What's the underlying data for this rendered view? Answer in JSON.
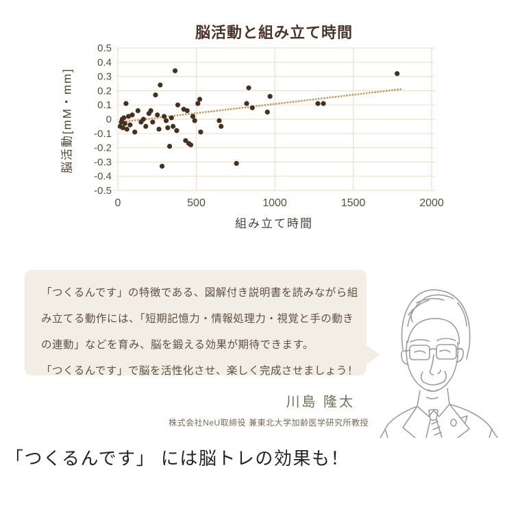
{
  "chart_data": {
    "type": "scatter",
    "title": "脳活動と組み立て時間",
    "xlabel": "組み立て時間",
    "ylabel": "脳活動[mM・mm]",
    "xlim": [
      0,
      2000
    ],
    "ylim": [
      -0.5,
      0.5
    ],
    "x_ticks": [
      "0",
      "500",
      "1000",
      "1500",
      "2000"
    ],
    "y_ticks": [
      "0.5",
      "0.4",
      "0.3",
      "0.2",
      "0.1",
      "0",
      "-0.1",
      "-0.2",
      "-0.3",
      "-0.4",
      "-0.5"
    ],
    "grid": true,
    "legend_position": "none",
    "colors": {
      "point": "#44311f",
      "trend": "#c49a58",
      "grid": "#eddfcb",
      "tick_text": "#5a4b3d",
      "title_text": "#4b3429",
      "axis_label_text": "#4e4236"
    },
    "series": [
      {
        "name": "brain-activity-points",
        "type": "scatter",
        "points": [
          [
            15,
            -0.05
          ],
          [
            22,
            -0.02
          ],
          [
            28,
            0.0
          ],
          [
            32,
            -0.06
          ],
          [
            38,
            0.01
          ],
          [
            45,
            -0.03
          ],
          [
            52,
            0.11
          ],
          [
            58,
            -0.07
          ],
          [
            68,
            0.02
          ],
          [
            78,
            -0.04
          ],
          [
            92,
            0.03
          ],
          [
            108,
            -0.09
          ],
          [
            128,
            0.06
          ],
          [
            148,
            -0.02
          ],
          [
            163,
            0.0
          ],
          [
            178,
            -0.05
          ],
          [
            198,
            0.04
          ],
          [
            210,
            0.06
          ],
          [
            222,
            -0.02
          ],
          [
            240,
            0.17
          ],
          [
            252,
            0.03
          ],
          [
            262,
            -0.07
          ],
          [
            270,
            0.24
          ],
          [
            282,
            -0.33
          ],
          [
            295,
            0.02
          ],
          [
            308,
            -0.01
          ],
          [
            318,
            -0.06
          ],
          [
            330,
            -0.19
          ],
          [
            342,
            0.01
          ],
          [
            352,
            -0.05
          ],
          [
            365,
            0.34
          ],
          [
            375,
            -0.08
          ],
          [
            382,
            0.1
          ],
          [
            420,
            0.07
          ],
          [
            432,
            -0.15
          ],
          [
            442,
            0.06
          ],
          [
            452,
            -0.17
          ],
          [
            465,
            -0.18
          ],
          [
            478,
            0.02
          ],
          [
            490,
            -0.01
          ],
          [
            510,
            0.11
          ],
          [
            522,
            0.14
          ],
          [
            528,
            -0.09
          ],
          [
            646,
            -0.01
          ],
          [
            658,
            -0.05
          ],
          [
            756,
            -0.31
          ],
          [
            821,
            0.11
          ],
          [
            834,
            0.22
          ],
          [
            857,
            0.08
          ],
          [
            953,
            0.05
          ],
          [
            970,
            0.16
          ],
          [
            1275,
            0.11
          ],
          [
            1310,
            0.11
          ],
          [
            1780,
            0.32
          ]
        ]
      },
      {
        "name": "trend-dotted-line",
        "type": "dotted_trend",
        "x_start": 20,
        "x_end": 1810,
        "intercept": -0.022,
        "slope": 0.000129,
        "dot_step": 18
      }
    ]
  },
  "callout": {
    "bg": "#f3eee5",
    "text_color": "#5d4f42",
    "lines": [
      "「つくるんです」の特徴である、図解付き説明書を読みながら組",
      "み立てる動作には、「短期記憶力・情報処理力・視覚と手の動き",
      "の連動」などを育み、脳を鍛える効果が期待できます。",
      "「つくるんです」で脳を活性化させ、楽しく完成させましょう！"
    ]
  },
  "person": {
    "name": "川島 隆太",
    "title": "株式会社NeU取締役 兼東北大学加齢医学研究所教授",
    "illustration": "professor-line-drawing"
  },
  "footer": {
    "headline": "「つくるんです」 には脳トレの効果も！"
  }
}
